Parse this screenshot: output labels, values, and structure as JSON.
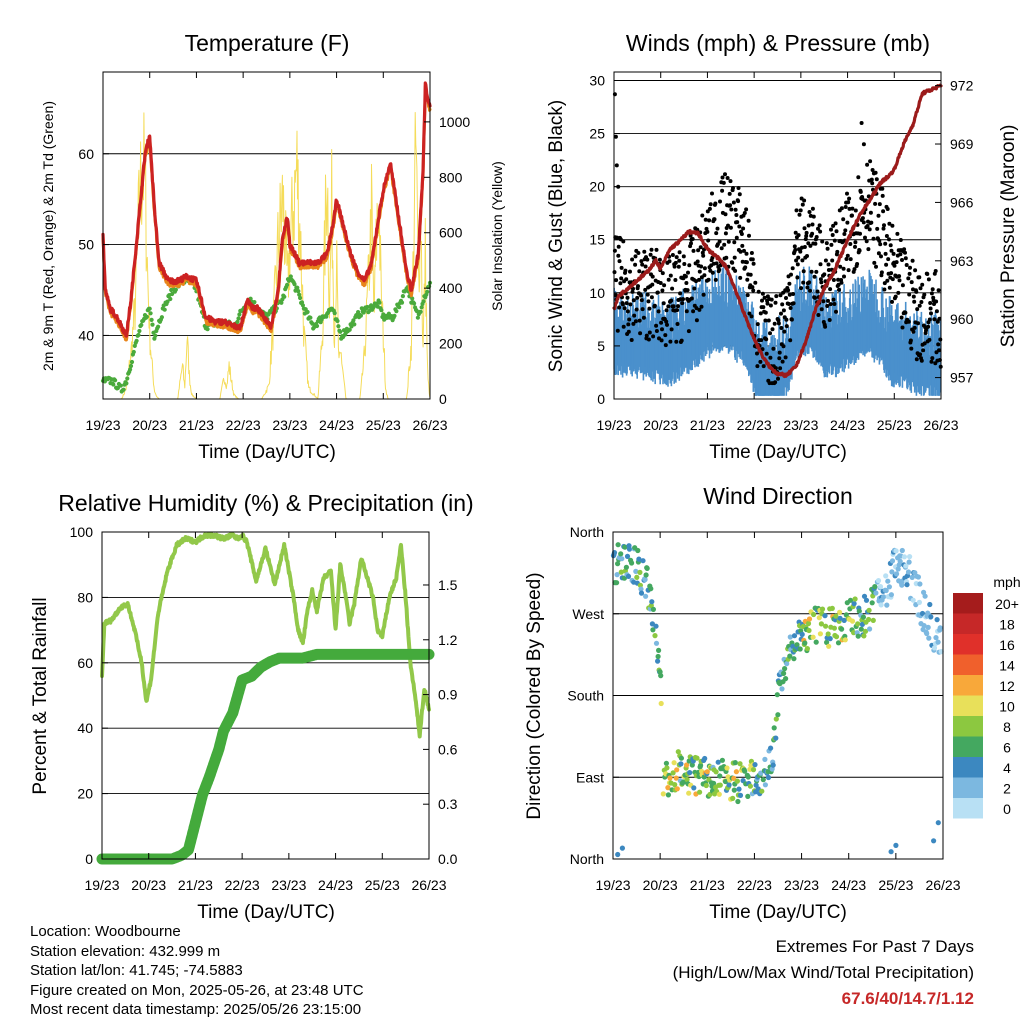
{
  "time_ticks": [
    "19/23",
    "20/23",
    "21/23",
    "22/23",
    "23/23",
    "24/23",
    "25/23",
    "26/23"
  ],
  "time_axis_label": "Time (Day/UTC)",
  "colors": {
    "temp_2m": "#cc2222",
    "temp_9m": "#e8851a",
    "dewpoint": "#4aaa3c",
    "solar": "#f5dc5a",
    "wind": "#4a90cc",
    "gust": "#000000",
    "pressure": "#9b1b1b",
    "rh": "#92c84a",
    "precip": "#44aa3c"
  },
  "info": {
    "location": "Location: Woodbourne",
    "elevation": "Station elevation: 432.999 m",
    "latlon": "Station lat/lon: 41.745; -74.5883",
    "created": "Figure created on Mon, 2025-05-26, at 23:48 UTC",
    "recent": "Most recent data timestamp: 2025/05/26 23:15:00"
  },
  "extremes": {
    "title": "Extremes For Past 7 Days",
    "subtitle": "(High/Low/Max Wind/Total Precipitation)",
    "values": "67.6/40/14.7/1.12"
  },
  "chart_data": [
    {
      "type": "line",
      "title": "Temperature (F)",
      "xlabel": "Time (Day/UTC)",
      "ylabel": "2m & 9m T (Red, Orange) & 2m Td (Green)",
      "y2label": "Solar Insolation (Yellow)",
      "ylim": [
        33,
        69
      ],
      "yticks": [
        40,
        50,
        60
      ],
      "y2lim": [
        0,
        1180
      ],
      "y2ticks": [
        0,
        200,
        400,
        600,
        800,
        1000
      ],
      "x_days": [
        0,
        7
      ],
      "series": [
        {
          "key": "temp",
          "axis": "left",
          "x": [
            0,
            0.05,
            0.15,
            0.3,
            0.5,
            0.6,
            0.75,
            0.9,
            1.0,
            1.1,
            1.2,
            1.4,
            1.6,
            1.8,
            2.0,
            2.2,
            2.4,
            2.6,
            2.8,
            2.95,
            3.1,
            3.2,
            3.3,
            3.45,
            3.6,
            3.75,
            3.85,
            3.95,
            4.0,
            4.2,
            4.4,
            4.6,
            4.8,
            4.95,
            5.0,
            5.15,
            5.3,
            5.45,
            5.6,
            5.75,
            5.9,
            6.0,
            6.15,
            6.3,
            6.5,
            6.6,
            6.75,
            6.85,
            6.9,
            7.0
          ],
          "y": [
            51,
            45,
            43,
            42,
            40,
            44,
            52,
            60,
            62,
            54,
            48,
            46,
            46,
            46.5,
            46,
            42,
            41.5,
            41.5,
            41,
            41,
            44,
            43,
            43,
            42,
            41,
            45,
            51,
            53,
            50,
            48,
            48,
            48,
            49,
            53,
            55,
            52,
            49,
            47,
            46,
            48,
            53,
            56,
            59,
            54,
            47,
            45,
            49,
            58,
            67.6,
            65
          ]
        },
        {
          "key": "dewpoint",
          "axis": "left",
          "x": [
            0,
            0.2,
            0.4,
            0.5,
            0.6,
            0.75,
            0.9,
            1.0,
            1.1,
            1.3,
            1.5,
            1.7,
            1.9,
            2.0,
            2.2,
            2.5,
            2.8,
            3.0,
            3.15,
            3.3,
            3.5,
            3.7,
            3.85,
            4.0,
            4.15,
            4.3,
            4.5,
            4.7,
            4.9,
            5.1,
            5.3,
            5.5,
            5.7,
            5.9,
            6.0,
            6.2,
            6.4,
            6.5,
            6.6,
            6.75,
            6.85,
            6.95,
            7.0
          ],
          "y": [
            35,
            35,
            34,
            35,
            37,
            40,
            42,
            43,
            40,
            43,
            45,
            46,
            46,
            45,
            41,
            41.5,
            41,
            43,
            44,
            43,
            42,
            43,
            44,
            46.5,
            45,
            43,
            41,
            42,
            43,
            40,
            41,
            42.5,
            43,
            43.5,
            42,
            42,
            44,
            45.5,
            44,
            42,
            44,
            45,
            46
          ]
        },
        {
          "key": "solar",
          "axis": "right",
          "x": [
            0,
            0.4,
            0.5,
            0.6,
            0.7,
            0.75,
            0.8,
            0.85,
            0.9,
            0.95,
            1.0,
            1.05,
            1.1,
            1.15,
            1.2,
            1.3,
            1.4,
            1.6,
            1.7,
            1.75,
            1.8,
            1.85,
            1.9,
            2.0,
            2.5,
            2.6,
            2.65,
            2.7,
            2.75,
            2.8,
            2.9,
            3.4,
            3.55,
            3.65,
            3.75,
            3.85,
            3.95,
            4.05,
            4.15,
            4.25,
            4.3,
            4.4,
            4.6,
            4.7,
            4.75,
            4.8,
            4.85,
            4.9,
            4.95,
            5.0,
            5.05,
            5.1,
            5.2,
            5.5,
            5.6,
            5.7,
            5.75,
            5.8,
            5.85,
            5.9,
            5.95,
            6.0,
            6.05,
            6.1,
            6.2,
            6.5,
            6.6,
            6.65,
            6.7,
            6.75,
            6.8,
            6.85,
            6.9,
            6.95,
            7.0
          ],
          "y": [
            0,
            0,
            50,
            200,
            450,
            750,
            950,
            1050,
            980,
            600,
            300,
            150,
            40,
            10,
            0,
            0,
            0,
            0,
            150,
            50,
            280,
            100,
            20,
            0,
            0,
            100,
            60,
            150,
            80,
            20,
            0,
            0,
            60,
            350,
            700,
            900,
            500,
            800,
            1050,
            600,
            300,
            50,
            0,
            300,
            700,
            1050,
            400,
            900,
            300,
            600,
            150,
            200,
            0,
            0,
            200,
            600,
            850,
            350,
            700,
            950,
            500,
            300,
            50,
            0,
            0,
            0,
            250,
            700,
            1150,
            500,
            900,
            200,
            650,
            100,
            0
          ]
        }
      ]
    },
    {
      "type": "scatter",
      "title": "Winds (mph) & Pressure (mb)",
      "xlabel": "Time (Day/UTC)",
      "ylabel": "Sonic Wind & Gust (Blue, Black)",
      "y2label": "Station Pressure (Maroon)",
      "ylim": [
        0,
        30.8
      ],
      "yticks": [
        0,
        5,
        10,
        15,
        20,
        25,
        30
      ],
      "y2lim": [
        955.9,
        972.7
      ],
      "y2ticks": [
        957,
        960,
        963,
        966,
        969,
        972
      ],
      "x_days": [
        0,
        7
      ],
      "wind_envelope": {
        "x": [
          0,
          0.4,
          0.8,
          1.2,
          1.5,
          1.8,
          2.1,
          2.4,
          2.8,
          3.1,
          3.4,
          3.7,
          3.95,
          4.2,
          4.5,
          4.8,
          5.1,
          5.4,
          5.7,
          5.95,
          6.2,
          6.5,
          6.8,
          7.0
        ],
        "y": [
          6,
          6,
          5.5,
          5,
          6,
          7,
          8,
          8,
          7,
          3,
          3,
          4,
          8,
          8,
          6,
          6,
          7,
          8,
          7,
          5,
          5,
          4,
          4,
          3.5
        ]
      },
      "gust_envelope": {
        "x": [
          0,
          0.4,
          0.8,
          1.2,
          1.5,
          1.8,
          2.1,
          2.4,
          2.8,
          3.1,
          3.4,
          3.7,
          3.95,
          4.2,
          4.5,
          4.8,
          5.1,
          5.4,
          5.7,
          5.95,
          6.2,
          6.5,
          6.8,
          7.0
        ],
        "y": [
          11,
          10,
          10,
          9,
          10,
          12,
          15,
          17,
          15,
          6,
          5,
          8,
          15,
          14,
          11,
          13,
          16,
          19,
          16,
          12,
          10,
          8,
          8,
          7
        ]
      },
      "series": [
        {
          "key": "pressure",
          "axis": "right",
          "x": [
            0,
            0.1,
            0.3,
            0.5,
            0.7,
            0.9,
            1.0,
            1.2,
            1.4,
            1.6,
            1.8,
            2.0,
            2.2,
            2.4,
            2.6,
            2.8,
            3.0,
            3.2,
            3.35,
            3.5,
            3.7,
            3.9,
            4.1,
            4.3,
            4.5,
            4.7,
            4.9,
            5.1,
            5.3,
            5.5,
            5.7,
            5.9,
            6.0,
            6.2,
            6.4,
            6.6,
            6.8,
            7.0
          ],
          "y": [
            960.5,
            961.2,
            961.6,
            962.0,
            962.4,
            963.0,
            962.6,
            963.6,
            964.0,
            964.5,
            964.4,
            963.6,
            963.2,
            962.7,
            961.5,
            960.2,
            959.0,
            958.0,
            957.5,
            957.2,
            957.1,
            957.6,
            958.8,
            960.4,
            961.6,
            962.4,
            963.5,
            964.6,
            965.5,
            966.2,
            967.0,
            967.4,
            967.7,
            969.0,
            970.0,
            971.6,
            971.8,
            972.0
          ]
        }
      ]
    },
    {
      "type": "line",
      "title": "Relative Humidity (%) & Precipitation (in)",
      "xlabel": "Time (Day/UTC)",
      "ylabel": "Percent & Total Rainfall",
      "ylim": [
        0,
        100
      ],
      "yticks": [
        0,
        20,
        40,
        60,
        80,
        100
      ],
      "y2lim": [
        0,
        1.79
      ],
      "y2ticks": [
        0.0,
        0.3,
        0.6,
        0.9,
        1.2,
        1.5
      ],
      "x_days": [
        0,
        7
      ],
      "series": [
        {
          "key": "rh",
          "axis": "left",
          "x": [
            0,
            0.05,
            0.2,
            0.4,
            0.55,
            0.7,
            0.85,
            0.95,
            1.05,
            1.2,
            1.4,
            1.6,
            1.8,
            2.0,
            2.2,
            2.4,
            2.6,
            2.8,
            2.9,
            3.0,
            3.1,
            3.3,
            3.5,
            3.7,
            3.9,
            4.0,
            4.1,
            4.2,
            4.3,
            4.4,
            4.5,
            4.6,
            4.75,
            4.9,
            5.0,
            5.1,
            5.2,
            5.3,
            5.4,
            5.55,
            5.7,
            5.8,
            5.9,
            6.0,
            6.15,
            6.3,
            6.4,
            6.5,
            6.6,
            6.7,
            6.8,
            6.9,
            7.0
          ],
          "y": [
            56,
            72,
            73,
            77,
            78,
            70,
            60,
            48,
            55,
            75,
            88,
            96,
            98,
            97,
            99,
            99,
            98,
            99,
            98,
            99,
            97,
            85,
            95,
            84,
            96,
            88,
            80,
            70,
            66,
            76,
            82,
            76,
            86,
            88,
            70,
            90,
            82,
            72,
            78,
            92,
            85,
            80,
            70,
            68,
            80,
            86,
            96,
            80,
            60,
            50,
            38,
            52,
            46
          ]
        },
        {
          "key": "precip",
          "axis": "right",
          "x": [
            0,
            1.5,
            1.7,
            1.85,
            2.0,
            2.15,
            2.3,
            2.5,
            2.6,
            2.8,
            3.0,
            3.2,
            3.4,
            3.6,
            3.8,
            4.0,
            4.3,
            4.6,
            4.9,
            5.2,
            5.5,
            5.8,
            6.1,
            6.4,
            6.7,
            7.0
          ],
          "y": [
            0,
            0,
            0.02,
            0.05,
            0.2,
            0.35,
            0.45,
            0.6,
            0.7,
            0.8,
            0.98,
            1.0,
            1.05,
            1.08,
            1.1,
            1.1,
            1.1,
            1.12,
            1.12,
            1.12,
            1.12,
            1.12,
            1.12,
            1.12,
            1.12,
            1.12
          ]
        }
      ]
    },
    {
      "type": "scatter",
      "title": "Wind Direction",
      "xlabel": "Time (Day/UTC)",
      "ylabel": "Direction (Colored By Speed)",
      "y_ticklabels": [
        "North",
        "East",
        "South",
        "West",
        "North"
      ],
      "ylim": [
        0,
        360
      ],
      "x_days": [
        0,
        7
      ],
      "direction_track": {
        "x": [
          0,
          0.2,
          0.4,
          0.6,
          0.8,
          0.9,
          1.0,
          1.05,
          1.2,
          1.4,
          1.6,
          1.8,
          2.0,
          2.2,
          2.4,
          2.6,
          2.8,
          3.0,
          3.1,
          3.2,
          3.35,
          3.45,
          3.5,
          3.6,
          3.8,
          4.0,
          4.2,
          4.4,
          4.6,
          4.8,
          5.0,
          5.2,
          5.4,
          5.6,
          5.8,
          5.9,
          6.0,
          6.2,
          6.4,
          6.6,
          6.8,
          7.0
        ],
        "y": [
          320,
          330,
          325,
          315,
          290,
          250,
          220,
          90,
          85,
          100,
          95,
          90,
          88,
          85,
          88,
          85,
          85,
          88,
          90,
          95,
          110,
          140,
          175,
          200,
          235,
          250,
          252,
          258,
          255,
          260,
          262,
          265,
          270,
          285,
          300,
          310,
          330,
          320,
          300,
          270,
          250,
          230
        ]
      },
      "legend_title": "mph",
      "legend_labels": [
        "20+",
        "18",
        "16",
        "14",
        "12",
        "10",
        "8",
        "6",
        "4",
        "2",
        "0"
      ],
      "legend_colors": [
        "#a51c1c",
        "#c62828",
        "#e0302a",
        "#f0602c",
        "#f8a83a",
        "#e8e05a",
        "#8cc840",
        "#44a860",
        "#3c88c0",
        "#7cb8e0",
        "#b8e0f4"
      ]
    }
  ]
}
